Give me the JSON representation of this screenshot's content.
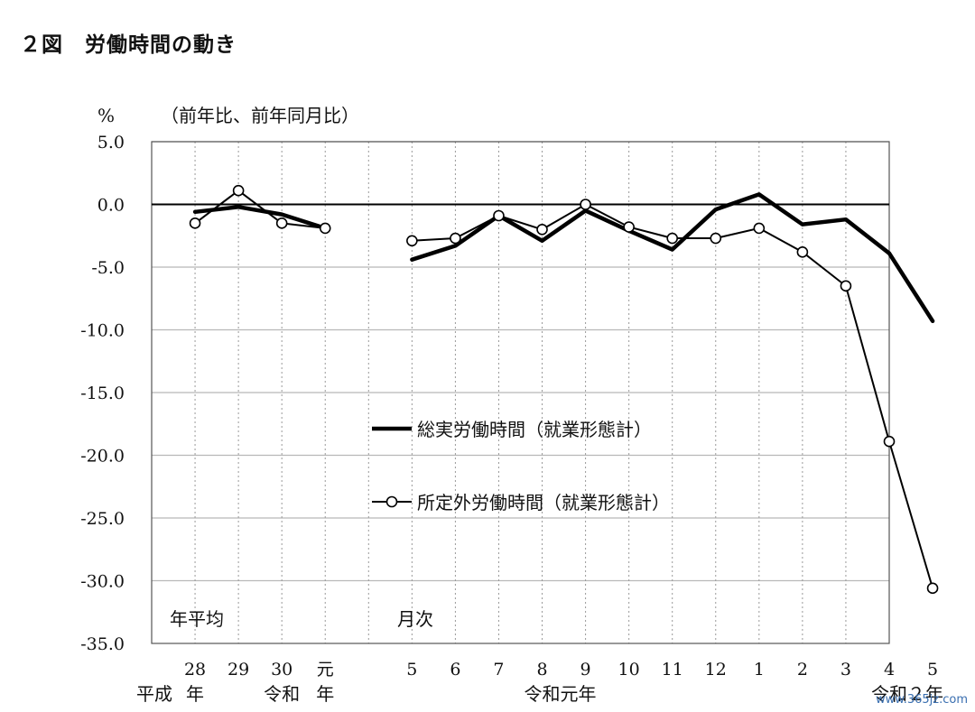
{
  "title": "２図　労働時間の動き",
  "watermark": "www.365jz.com",
  "chart_data": {
    "type": "line",
    "title": "２図　労働時間の動き",
    "yunit": "%",
    "ylabel": "（前年比、前年同月比）",
    "ylim": [
      -35,
      5
    ],
    "yticks": [
      "5.0",
      "0.0",
      "-5.0",
      "-10.0",
      "-15.0",
      "-20.0",
      "-25.0",
      "-30.0",
      "-35.0"
    ],
    "grid": true,
    "legend_position": "center",
    "section_labels": {
      "annual": "年平均",
      "monthly": "月次"
    },
    "annual": {
      "categories": [
        "28",
        "29",
        "30",
        "元"
      ],
      "era_labels": [
        {
          "text": "平成",
          "under": "28",
          "side": "left"
        },
        {
          "text": "年",
          "under": "28",
          "side": "center"
        },
        {
          "text": "令和",
          "under": "30",
          "side": "center"
        },
        {
          "text": "年",
          "under": "元",
          "side": "center"
        }
      ]
    },
    "monthly": {
      "categories": [
        "5",
        "6",
        "7",
        "8",
        "9",
        "10",
        "11",
        "12",
        "1",
        "2",
        "3",
        "4",
        "5"
      ],
      "era_labels": [
        {
          "text": "令和元年",
          "under": "8",
          "side": "right"
        },
        {
          "text": "令和２年",
          "under": "4",
          "side": "right"
        }
      ]
    },
    "series": [
      {
        "name": "総実労働時間（就業形態計）",
        "marker": "none",
        "annual_values": [
          -0.6,
          -0.2,
          -0.8,
          -1.9
        ],
        "monthly_values": [
          -4.4,
          -3.3,
          -0.9,
          -2.9,
          -0.5,
          -2.1,
          -3.6,
          -0.4,
          0.8,
          -1.6,
          -1.2,
          -3.9,
          -9.3
        ]
      },
      {
        "name": "所定外労働時間（就業形態計）",
        "marker": "circle",
        "annual_values": [
          -1.5,
          1.1,
          -1.5,
          -1.9
        ],
        "monthly_values": [
          -2.9,
          -2.7,
          -0.9,
          -2.0,
          0.0,
          -1.8,
          -2.7,
          -2.7,
          -1.9,
          -3.8,
          -6.5,
          -18.9,
          -30.6
        ]
      }
    ],
    "colors": {
      "line": "#000000",
      "grid": "#b8b8b8",
      "marker_fill": "#ffffff"
    }
  }
}
